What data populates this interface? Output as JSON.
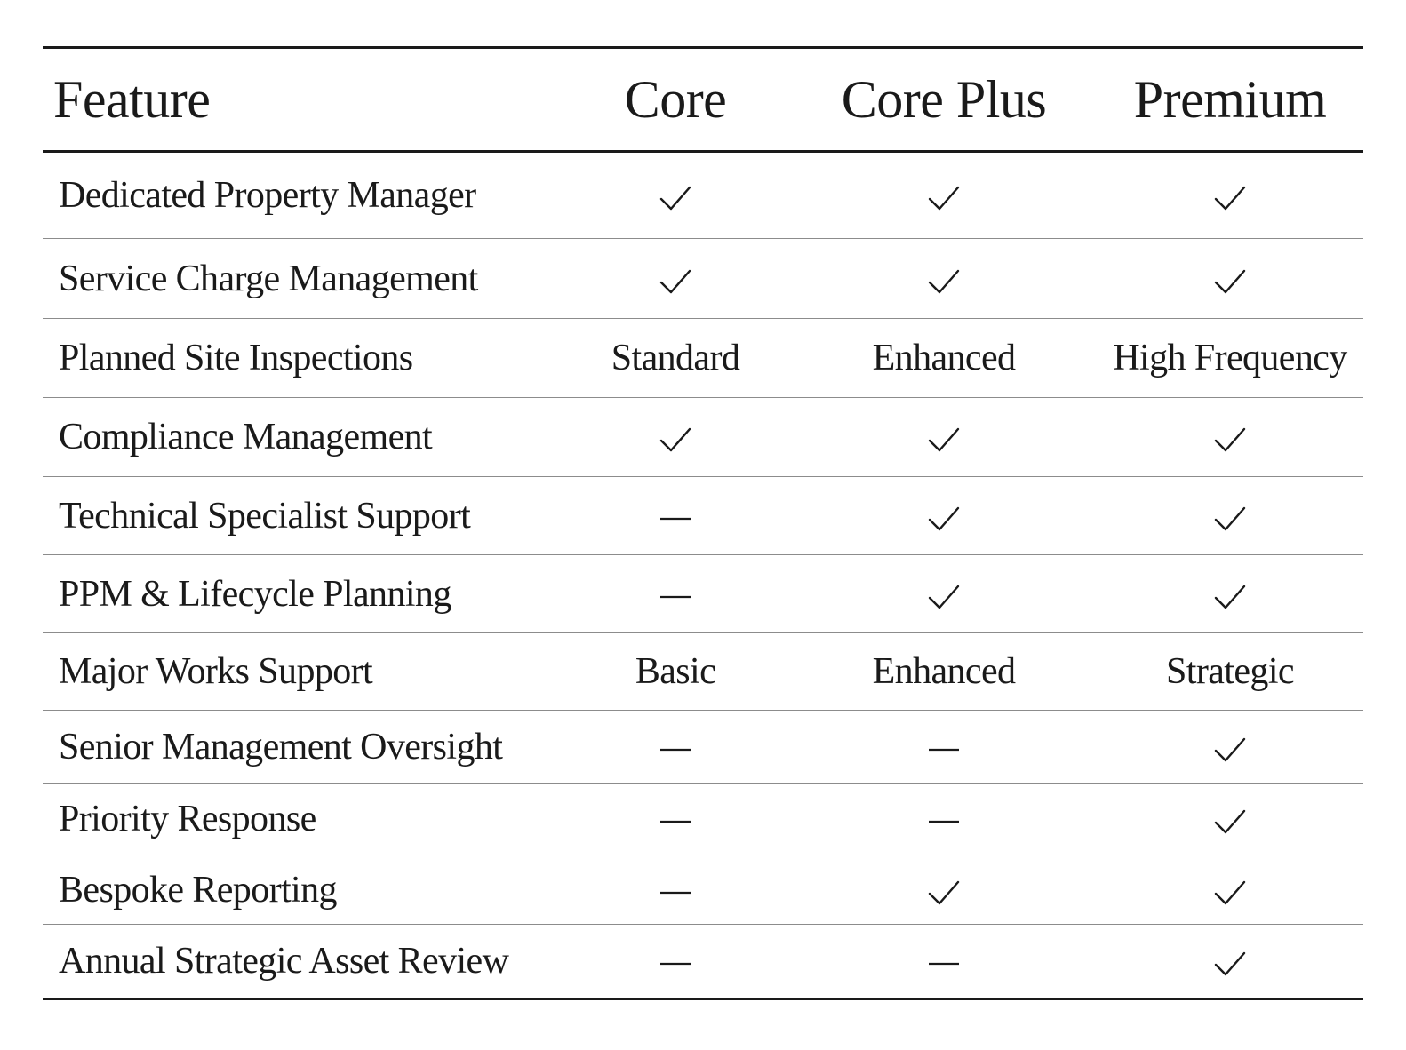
{
  "table": {
    "headers": [
      "Feature",
      "Core",
      "Core Plus",
      "Premium"
    ],
    "rows": [
      {
        "feature": "Dedicated Property Manager",
        "values": [
          "check",
          "check",
          "check"
        ]
      },
      {
        "feature": "Service Charge Management",
        "values": [
          "check",
          "check",
          "check"
        ]
      },
      {
        "feature": "Planned Site Inspections",
        "values": [
          "Standard",
          "Enhanced",
          "High Frequency"
        ]
      },
      {
        "feature": "Compliance Management",
        "values": [
          "check",
          "check",
          "check"
        ]
      },
      {
        "feature": "Technical Specialist Support",
        "values": [
          "dash",
          "check",
          "check"
        ]
      },
      {
        "feature": "PPM & Lifecycle Planning",
        "values": [
          "dash",
          "check",
          "check"
        ]
      },
      {
        "feature": "Major Works Support",
        "values": [
          "Basic",
          "Enhanced",
          "Strategic"
        ]
      },
      {
        "feature": "Senior Management Oversight",
        "values": [
          "dash",
          "dash",
          "check"
        ]
      },
      {
        "feature": "Priority Response",
        "values": [
          "dash",
          "dash",
          "check"
        ]
      },
      {
        "feature": "Bespoke Reporting",
        "values": [
          "dash",
          "check",
          "check"
        ]
      },
      {
        "feature": "Annual Strategic Asset Review",
        "values": [
          "dash",
          "dash",
          "check"
        ]
      }
    ]
  },
  "icons": {
    "check": "check-icon",
    "dash": "dash-icon"
  }
}
